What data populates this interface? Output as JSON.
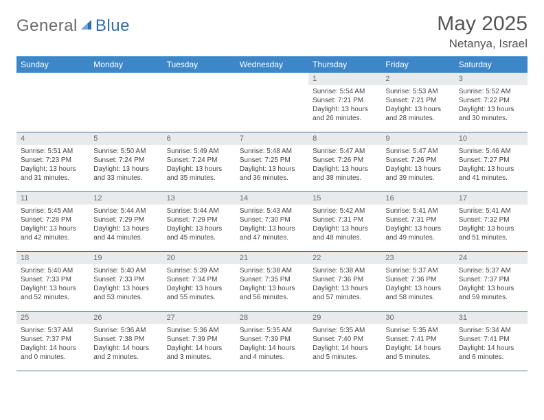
{
  "logo": {
    "general": "General",
    "blue": "Blue"
  },
  "header": {
    "title": "May 2025",
    "location": "Netanya, Israel"
  },
  "colors": {
    "header_bg": "#3d87c9",
    "header_fg": "#ffffff",
    "daynum_bg": "#e9eaeb",
    "daynum_fg": "#6a6a6a",
    "rule": "#3d6fa0",
    "text": "#444444",
    "logo_gray": "#6b6b6b",
    "logo_blue": "#2f6db3"
  },
  "dow": [
    "Sunday",
    "Monday",
    "Tuesday",
    "Wednesday",
    "Thursday",
    "Friday",
    "Saturday"
  ],
  "weeks": [
    [
      null,
      null,
      null,
      null,
      {
        "n": "1",
        "sr": "5:54 AM",
        "ss": "7:21 PM",
        "dl": "13 hours and 26 minutes."
      },
      {
        "n": "2",
        "sr": "5:53 AM",
        "ss": "7:21 PM",
        "dl": "13 hours and 28 minutes."
      },
      {
        "n": "3",
        "sr": "5:52 AM",
        "ss": "7:22 PM",
        "dl": "13 hours and 30 minutes."
      }
    ],
    [
      {
        "n": "4",
        "sr": "5:51 AM",
        "ss": "7:23 PM",
        "dl": "13 hours and 31 minutes."
      },
      {
        "n": "5",
        "sr": "5:50 AM",
        "ss": "7:24 PM",
        "dl": "13 hours and 33 minutes."
      },
      {
        "n": "6",
        "sr": "5:49 AM",
        "ss": "7:24 PM",
        "dl": "13 hours and 35 minutes."
      },
      {
        "n": "7",
        "sr": "5:48 AM",
        "ss": "7:25 PM",
        "dl": "13 hours and 36 minutes."
      },
      {
        "n": "8",
        "sr": "5:47 AM",
        "ss": "7:26 PM",
        "dl": "13 hours and 38 minutes."
      },
      {
        "n": "9",
        "sr": "5:47 AM",
        "ss": "7:26 PM",
        "dl": "13 hours and 39 minutes."
      },
      {
        "n": "10",
        "sr": "5:46 AM",
        "ss": "7:27 PM",
        "dl": "13 hours and 41 minutes."
      }
    ],
    [
      {
        "n": "11",
        "sr": "5:45 AM",
        "ss": "7:28 PM",
        "dl": "13 hours and 42 minutes."
      },
      {
        "n": "12",
        "sr": "5:44 AM",
        "ss": "7:29 PM",
        "dl": "13 hours and 44 minutes."
      },
      {
        "n": "13",
        "sr": "5:44 AM",
        "ss": "7:29 PM",
        "dl": "13 hours and 45 minutes."
      },
      {
        "n": "14",
        "sr": "5:43 AM",
        "ss": "7:30 PM",
        "dl": "13 hours and 47 minutes."
      },
      {
        "n": "15",
        "sr": "5:42 AM",
        "ss": "7:31 PM",
        "dl": "13 hours and 48 minutes."
      },
      {
        "n": "16",
        "sr": "5:41 AM",
        "ss": "7:31 PM",
        "dl": "13 hours and 49 minutes."
      },
      {
        "n": "17",
        "sr": "5:41 AM",
        "ss": "7:32 PM",
        "dl": "13 hours and 51 minutes."
      }
    ],
    [
      {
        "n": "18",
        "sr": "5:40 AM",
        "ss": "7:33 PM",
        "dl": "13 hours and 52 minutes."
      },
      {
        "n": "19",
        "sr": "5:40 AM",
        "ss": "7:33 PM",
        "dl": "13 hours and 53 minutes."
      },
      {
        "n": "20",
        "sr": "5:39 AM",
        "ss": "7:34 PM",
        "dl": "13 hours and 55 minutes."
      },
      {
        "n": "21",
        "sr": "5:38 AM",
        "ss": "7:35 PM",
        "dl": "13 hours and 56 minutes."
      },
      {
        "n": "22",
        "sr": "5:38 AM",
        "ss": "7:36 PM",
        "dl": "13 hours and 57 minutes."
      },
      {
        "n": "23",
        "sr": "5:37 AM",
        "ss": "7:36 PM",
        "dl": "13 hours and 58 minutes."
      },
      {
        "n": "24",
        "sr": "5:37 AM",
        "ss": "7:37 PM",
        "dl": "13 hours and 59 minutes."
      }
    ],
    [
      {
        "n": "25",
        "sr": "5:37 AM",
        "ss": "7:37 PM",
        "dl": "14 hours and 0 minutes."
      },
      {
        "n": "26",
        "sr": "5:36 AM",
        "ss": "7:38 PM",
        "dl": "14 hours and 2 minutes."
      },
      {
        "n": "27",
        "sr": "5:36 AM",
        "ss": "7:39 PM",
        "dl": "14 hours and 3 minutes."
      },
      {
        "n": "28",
        "sr": "5:35 AM",
        "ss": "7:39 PM",
        "dl": "14 hours and 4 minutes."
      },
      {
        "n": "29",
        "sr": "5:35 AM",
        "ss": "7:40 PM",
        "dl": "14 hours and 5 minutes."
      },
      {
        "n": "30",
        "sr": "5:35 AM",
        "ss": "7:41 PM",
        "dl": "14 hours and 5 minutes."
      },
      {
        "n": "31",
        "sr": "5:34 AM",
        "ss": "7:41 PM",
        "dl": "14 hours and 6 minutes."
      }
    ]
  ],
  "labels": {
    "sunrise": "Sunrise: ",
    "sunset": "Sunset: ",
    "daylight": "Daylight: "
  }
}
